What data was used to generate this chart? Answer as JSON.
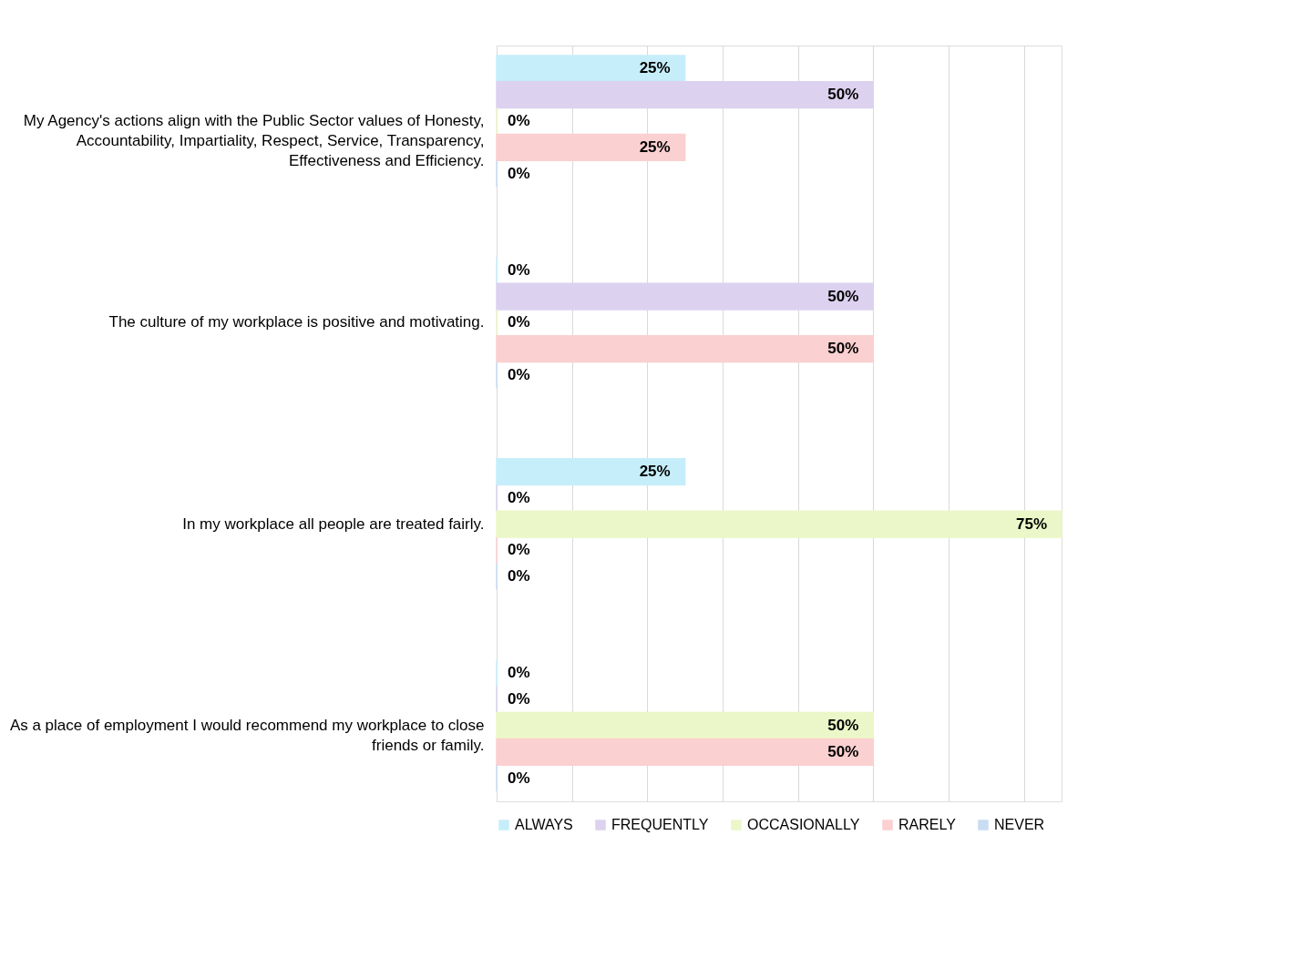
{
  "chart_data": {
    "type": "bar",
    "orientation": "horizontal",
    "categories": [
      "My Agency's actions align with the Public Sector values of Honesty, Accountability, Impartiality, Respect, Service, Transparency, Effectiveness and Efficiency.",
      "The culture of my workplace is positive and motivating.",
      "In my workplace all people are treated fairly.",
      "As a place of employment I would recommend my workplace to close friends or family."
    ],
    "series": [
      {
        "name": "ALWAYS",
        "color": "#c6eefa",
        "values": [
          25,
          0,
          25,
          0
        ],
        "value_labels": [
          "25%",
          "0%",
          "25%",
          "0%"
        ]
      },
      {
        "name": "FREQUENTLY",
        "color": "#dcd2ef",
        "values": [
          50,
          50,
          0,
          0
        ],
        "value_labels": [
          "50%",
          "50%",
          "0%",
          "0%"
        ]
      },
      {
        "name": "OCCASIONALLY",
        "color": "#ebf7c8",
        "values": [
          0,
          0,
          75,
          50
        ],
        "value_labels": [
          "0%",
          "0%",
          "75%",
          "50%"
        ]
      },
      {
        "name": "RARELY",
        "color": "#fbd0d0",
        "values": [
          25,
          50,
          0,
          50
        ],
        "value_labels": [
          "25%",
          "50%",
          "0%",
          "50%"
        ]
      },
      {
        "name": "NEVER",
        "color": "#c9dcf2",
        "values": [
          0,
          0,
          0,
          0
        ],
        "value_labels": [
          "0%",
          "0%",
          "0%",
          "0%"
        ]
      }
    ],
    "xlim": [
      0,
      75
    ],
    "xticks": [
      {
        "value": 0,
        "label": null
      },
      {
        "value": 10,
        "label": null
      },
      {
        "value": 20,
        "label": null
      },
      {
        "value": 30,
        "label": null
      },
      {
        "value": 40,
        "label": null
      },
      {
        "value": 50,
        "label": null
      },
      {
        "value": 60,
        "label": null
      },
      {
        "value": 70,
        "label": null
      }
    ],
    "tick_labels": "y",
    "grid": "x",
    "legend": "bottom"
  }
}
